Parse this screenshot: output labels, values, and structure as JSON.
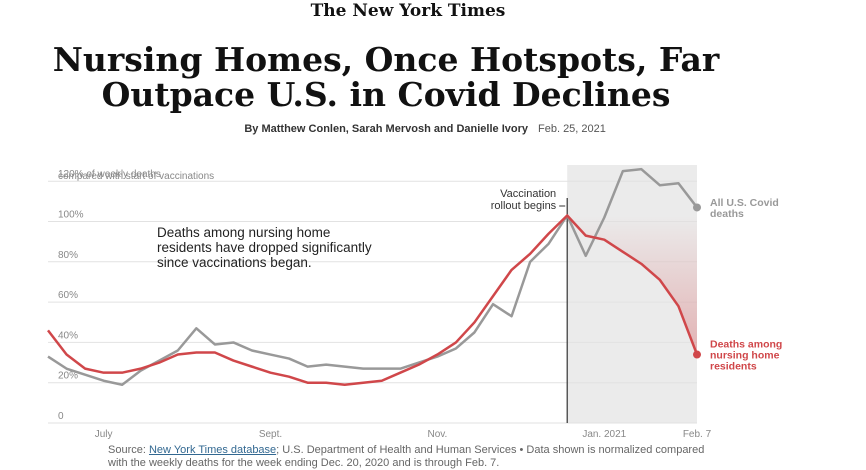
{
  "masthead": "The New York Times",
  "byline": "By Matthew Conlen, Sarah Mervosh and Danielle Ivory",
  "date": "Feb. 25, 2021",
  "source": {
    "prefix": "Source:",
    "link": "New York Times database",
    "text": "; U.S. Department of Health and Human Services  •  Data shown is normalized compared with the weekly deaths for the week ending Dec. 20, 2020 and is through Feb. 7."
  },
  "chart_data": {
    "type": "line",
    "title": [
      "Nursing Homes, Once Hotspots, Far",
      "Outpace U.S. in Covid Declines"
    ],
    "y_label": "compared with start of vaccinations",
    "annotation": [
      "Deaths among nursing home",
      "residents have dropped significantly",
      "since vaccinations began."
    ],
    "vaccination_label": [
      "Vaccination",
      "rollout begins"
    ],
    "categories": [
      null,
      null,
      null,
      "July",
      null,
      null,
      null,
      null,
      null,
      null,
      null,
      null,
      "Sept.",
      null,
      null,
      null,
      null,
      null,
      null,
      null,
      null,
      "Nov.",
      null,
      null,
      null,
      null,
      null,
      null,
      null,
      null,
      "Jan. 2021",
      null,
      null,
      null,
      null,
      "Feb. 7"
    ],
    "series": [
      {
        "name": [
          "All U.S. Covid",
          "deaths"
        ],
        "color": "#999999",
        "values": [
          30,
          24,
          21,
          18,
          16,
          23,
          28,
          33,
          44,
          36,
          37,
          33,
          31,
          29,
          25,
          26,
          25,
          24,
          24,
          24,
          27,
          30,
          34,
          42,
          56,
          50,
          77,
          86,
          100,
          80,
          99,
          122,
          123,
          115,
          116,
          104
        ]
      },
      {
        "name": [
          "Deaths among",
          "nursing home",
          "residents"
        ],
        "color": "#d0474a",
        "values": [
          43,
          31,
          24,
          22,
          22,
          24,
          27,
          31,
          32,
          32,
          28,
          25,
          22,
          20,
          17,
          17,
          16,
          17,
          18,
          22,
          26,
          31,
          37,
          47,
          60,
          73,
          81,
          91,
          100,
          90,
          88,
          82,
          76,
          68,
          55,
          31
        ]
      }
    ],
    "ylim": [
      0,
      125
    ],
    "yticks": [
      0,
      {
        "value": 20,
        "label": "20%"
      },
      {
        "value": 40,
        "label": "40%"
      },
      {
        "value": 60,
        "label": "60%"
      },
      {
        "value": 80,
        "label": "80%"
      },
      {
        "value": 100,
        "label": "100%"
      },
      {
        "value": 120,
        "label": "120% of weekly deaths"
      }
    ],
    "grid": true
  }
}
